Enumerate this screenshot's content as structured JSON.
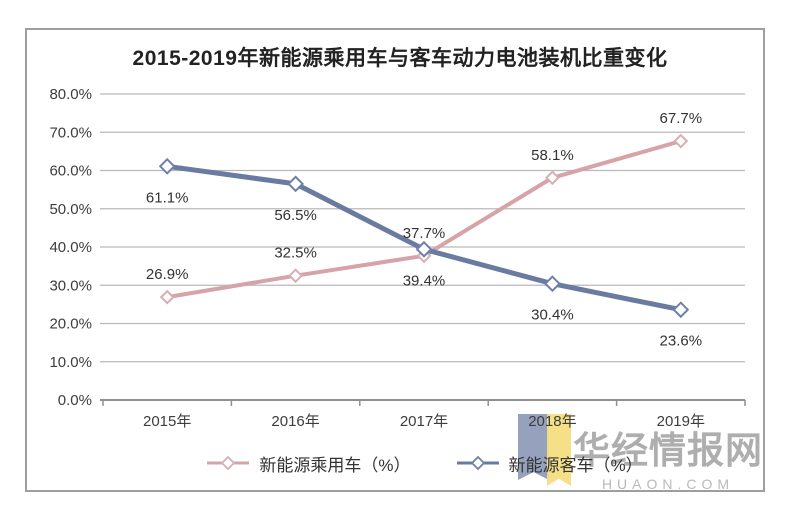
{
  "chart_data": {
    "type": "line",
    "title": "2015-2019年新能源乘用车与客车动力电池装机比重变化",
    "categories": [
      "2015年",
      "2016年",
      "2017年",
      "2018年",
      "2019年"
    ],
    "series": [
      {
        "name": "新能源乘用车（%）",
        "values": [
          26.9,
          32.5,
          37.7,
          58.1,
          67.7
        ],
        "data_labels": [
          "26.9%",
          "32.5%",
          "37.7%",
          "58.1%",
          "67.7%"
        ],
        "color": "#d5a3a8",
        "marker": "diamond",
        "marker_stroke": "#d9aeb3",
        "marker_fill": "#ffffff",
        "line_width": 4,
        "label_position": "above"
      },
      {
        "name": "新能源客车（%）",
        "values": [
          61.1,
          56.5,
          39.4,
          30.4,
          23.6
        ],
        "data_labels": [
          "61.1%",
          "56.5%",
          "39.4%",
          "30.4%",
          "23.6%"
        ],
        "color": "#6a7ba2",
        "marker": "diamond",
        "marker_stroke": "#6f80a8",
        "marker_fill": "#ffffff",
        "line_width": 5,
        "label_position": "below"
      }
    ],
    "ylim": [
      0,
      80
    ],
    "ytick_step": 10,
    "ytick_labels": [
      "0.0%",
      "10.0%",
      "20.0%",
      "30.0%",
      "40.0%",
      "50.0%",
      "60.0%",
      "70.0%",
      "80.0%"
    ],
    "grid": true,
    "legend_position": "bottom"
  },
  "watermark": {
    "name": "华经情报网",
    "domain": "HUAON.COM",
    "ribbon_colors": [
      "#8d99b9",
      "#f4de82"
    ]
  },
  "colors": {
    "grid": "#b9b9b9",
    "axis": "#8f8f8f",
    "tick_text": "#3d3d3d",
    "data_label_text": "#333333",
    "frame_border": "#9e9e9e",
    "background": "#ffffff"
  }
}
